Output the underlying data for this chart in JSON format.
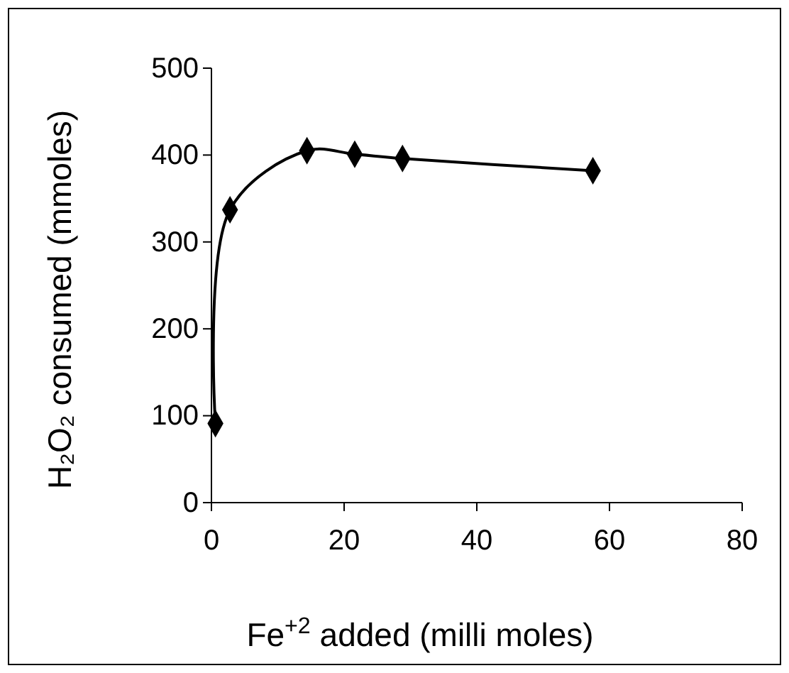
{
  "chart_data": {
    "type": "line",
    "xlabel": "Fe$^{+2}$ added (milli moles)",
    "ylabel": "H₂O₂ consumed (mmoles)",
    "x": [
      0.6,
      2.8,
      14.4,
      21.6,
      28.8,
      57.5
    ],
    "series": [
      {
        "color": "#000000",
        "values": [
          91,
          337,
          405,
          401,
          396,
          382
        ]
      }
    ],
    "xlim": [
      0,
      80
    ],
    "xticks": [
      0,
      20,
      40,
      60,
      80
    ],
    "ylim": [
      0,
      500
    ],
    "yticks": [
      0,
      100,
      200,
      300,
      400,
      500
    ],
    "marker": "diamond",
    "line_style": "solid"
  }
}
